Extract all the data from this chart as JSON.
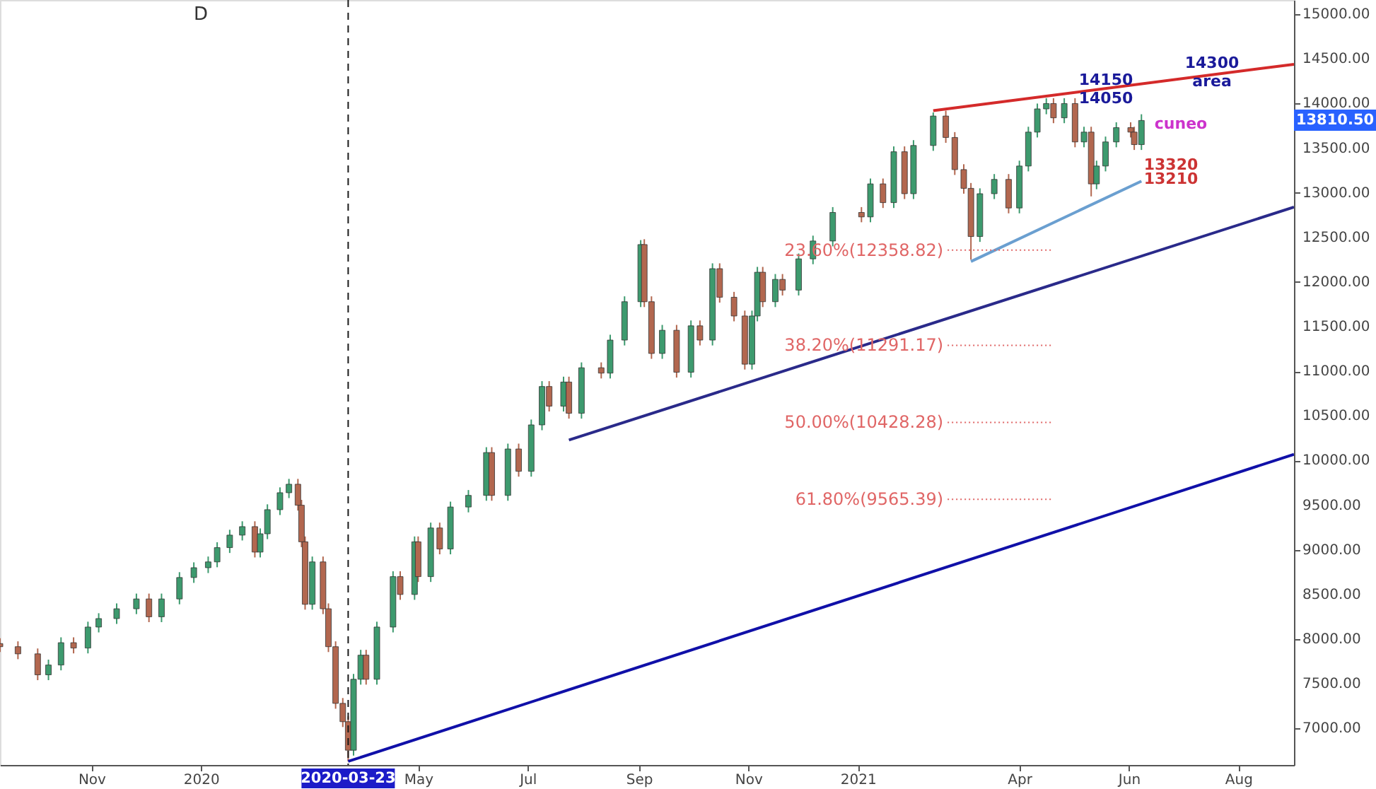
{
  "chart_data": {
    "type": "candlestick",
    "x": [
      "2019-09-11",
      "2019-09-21",
      "2019-10-02",
      "2019-10-08",
      "2019-10-15",
      "2019-10-22",
      "2019-10-30",
      "2019-11-05",
      "2019-11-15",
      "2019-11-26",
      "2019-12-03",
      "2019-12-10",
      "2019-12-20",
      "2019-12-28",
      "2020-01-05",
      "2020-01-10",
      "2020-01-17",
      "2020-01-24",
      "2020-01-31",
      "2020-02-03",
      "2020-02-07",
      "2020-02-14",
      "2020-02-19",
      "2020-02-24",
      "2020-02-26",
      "2020-02-28",
      "2020-03-03",
      "2020-03-09",
      "2020-03-12",
      "2020-03-16",
      "2020-03-20",
      "2020-03-23",
      "2020-03-26",
      "2020-03-30",
      "2020-04-02",
      "2020-04-08",
      "2020-04-17",
      "2020-04-21",
      "2020-04-29",
      "2020-05-01",
      "2020-05-08",
      "2020-05-13",
      "2020-05-19",
      "2020-05-29",
      "2020-06-08",
      "2020-06-11",
      "2020-06-20",
      "2020-06-26",
      "2020-07-03",
      "2020-07-09",
      "2020-07-13",
      "2020-07-21",
      "2020-07-24",
      "2020-07-31",
      "2020-08-11",
      "2020-08-16",
      "2020-08-24",
      "2020-09-02",
      "2020-09-04",
      "2020-09-08",
      "2020-09-14",
      "2020-09-22",
      "2020-09-30",
      "2020-10-05",
      "2020-10-12",
      "2020-10-16",
      "2020-10-24",
      "2020-10-30",
      "2020-11-03",
      "2020-11-06",
      "2020-11-09",
      "2020-11-16",
      "2020-11-20",
      "2020-11-29",
      "2020-12-07",
      "2020-12-18",
      "2021-01-03",
      "2021-01-08",
      "2021-01-15",
      "2021-01-21",
      "2021-01-27",
      "2021-02-01",
      "2021-02-12",
      "2021-02-19",
      "2021-02-24",
      "2021-03-01",
      "2021-03-05",
      "2021-03-10",
      "2021-03-18",
      "2021-03-26",
      "2021-04-01",
      "2021-04-06",
      "2021-04-11",
      "2021-04-16",
      "2021-04-20",
      "2021-04-26",
      "2021-05-02",
      "2021-05-07",
      "2021-05-11",
      "2021-05-14",
      "2021-05-19",
      "2021-05-25",
      "2021-06-02",
      "2021-06-04",
      "2021-06-08"
    ],
    "ohlc": [
      [
        7950,
        8010,
        7855,
        7915
      ],
      [
        7915,
        7975,
        7775,
        7835
      ],
      [
        7835,
        7895,
        7540,
        7600
      ],
      [
        7600,
        7770,
        7540,
        7710
      ],
      [
        7710,
        8020,
        7650,
        7960
      ],
      [
        7960,
        8020,
        7840,
        7900
      ],
      [
        7900,
        8195,
        7840,
        8135
      ],
      [
        8135,
        8290,
        8075,
        8230
      ],
      [
        8230,
        8400,
        8170,
        8340
      ],
      [
        8340,
        8510,
        8280,
        8450
      ],
      [
        8450,
        8510,
        8190,
        8250
      ],
      [
        8250,
        8510,
        8190,
        8450
      ],
      [
        8450,
        8750,
        8390,
        8690
      ],
      [
        8690,
        8860,
        8630,
        8800
      ],
      [
        8800,
        8925,
        8740,
        8865
      ],
      [
        8865,
        9085,
        8805,
        9025
      ],
      [
        9025,
        9225,
        8965,
        9165
      ],
      [
        9165,
        9320,
        9105,
        9260
      ],
      [
        9260,
        9320,
        8915,
        8975
      ],
      [
        8975,
        9240,
        8915,
        9180
      ],
      [
        9180,
        9510,
        9120,
        9450
      ],
      [
        9450,
        9700,
        9390,
        9640
      ],
      [
        9640,
        9795,
        9580,
        9735
      ],
      [
        9735,
        9795,
        9440,
        9500
      ],
      [
        9500,
        9560,
        9030,
        9090
      ],
      [
        9090,
        9150,
        8330,
        8390
      ],
      [
        8390,
        8925,
        8330,
        8865
      ],
      [
        8865,
        8925,
        8280,
        8340
      ],
      [
        8340,
        8400,
        7855,
        7915
      ],
      [
        7915,
        7975,
        7220,
        7280
      ],
      [
        7280,
        7340,
        7015,
        7075
      ],
      [
        7075,
        7135,
        6630,
        6755
      ],
      [
        6755,
        7610,
        6695,
        7550
      ],
      [
        7550,
        7880,
        7490,
        7820
      ],
      [
        7820,
        7880,
        7490,
        7550
      ],
      [
        7550,
        8195,
        7490,
        8135
      ],
      [
        8135,
        8760,
        8075,
        8700
      ],
      [
        8700,
        8760,
        8440,
        8500
      ],
      [
        8500,
        9150,
        8440,
        9090
      ],
      [
        9090,
        9150,
        8640,
        8700
      ],
      [
        8700,
        9305,
        8640,
        9245
      ],
      [
        9245,
        9305,
        8950,
        9010
      ],
      [
        9010,
        9540,
        8950,
        9480
      ],
      [
        9480,
        9670,
        9420,
        9610
      ],
      [
        9610,
        10150,
        9550,
        10090
      ],
      [
        10090,
        10150,
        9550,
        9610
      ],
      [
        9610,
        10190,
        9550,
        10130
      ],
      [
        10130,
        10190,
        9820,
        9880
      ],
      [
        9880,
        10460,
        9820,
        10400
      ],
      [
        10400,
        10890,
        10340,
        10830
      ],
      [
        10830,
        10890,
        10550,
        10610
      ],
      [
        10610,
        10940,
        10550,
        10880
      ],
      [
        10880,
        10940,
        10470,
        10530
      ],
      [
        10530,
        11100,
        10470,
        11040
      ],
      [
        11040,
        11100,
        10920,
        10980
      ],
      [
        10980,
        11410,
        10920,
        11350
      ],
      [
        11350,
        11840,
        11290,
        11780
      ],
      [
        11780,
        12470,
        11720,
        12420
      ],
      [
        12420,
        12480,
        11720,
        11780
      ],
      [
        11780,
        11840,
        11140,
        11200
      ],
      [
        11200,
        11520,
        11140,
        11460
      ],
      [
        11460,
        11520,
        10930,
        10990
      ],
      [
        10990,
        11570,
        10930,
        11510
      ],
      [
        11510,
        11570,
        11290,
        11350
      ],
      [
        11350,
        12210,
        11290,
        12150
      ],
      [
        12150,
        12210,
        11770,
        11830
      ],
      [
        11830,
        11890,
        11560,
        11620
      ],
      [
        11620,
        11680,
        11020,
        11080
      ],
      [
        11080,
        11680,
        11020,
        11620
      ],
      [
        11620,
        12170,
        11560,
        12110
      ],
      [
        12110,
        12170,
        11720,
        11780
      ],
      [
        11780,
        12090,
        11720,
        12030
      ],
      [
        12030,
        12090,
        11850,
        11910
      ],
      [
        11910,
        12320,
        11850,
        12260
      ],
      [
        12260,
        12520,
        12200,
        12460
      ],
      [
        12460,
        12840,
        12400,
        12780
      ],
      [
        12780,
        12840,
        12670,
        12730
      ],
      [
        12730,
        13160,
        12670,
        13100
      ],
      [
        13100,
        13160,
        12830,
        12890
      ],
      [
        12890,
        13520,
        12830,
        13460
      ],
      [
        13460,
        13520,
        12930,
        12990
      ],
      [
        12990,
        13590,
        12930,
        13530
      ],
      [
        13530,
        13900,
        13470,
        13860
      ],
      [
        13860,
        13920,
        13560,
        13620
      ],
      [
        13620,
        13680,
        13200,
        13260
      ],
      [
        13260,
        13320,
        12990,
        13050
      ],
      [
        13050,
        13110,
        12250,
        12510
      ],
      [
        12510,
        13050,
        12450,
        12990
      ],
      [
        12990,
        13210,
        12930,
        13150
      ],
      [
        13150,
        13210,
        12770,
        12830
      ],
      [
        12830,
        13360,
        12770,
        13300
      ],
      [
        13300,
        13740,
        13240,
        13680
      ],
      [
        13680,
        14000,
        13620,
        13940
      ],
      [
        13940,
        14060,
        13880,
        14000
      ],
      [
        14000,
        14060,
        13780,
        13840
      ],
      [
        13840,
        14060,
        13780,
        14000
      ],
      [
        14000,
        14060,
        13510,
        13570
      ],
      [
        13570,
        13740,
        13510,
        13680
      ],
      [
        13680,
        13740,
        12960,
        13100
      ],
      [
        13100,
        13360,
        13040,
        13300
      ],
      [
        13300,
        13630,
        13240,
        13570
      ],
      [
        13570,
        13790,
        13510,
        13730
      ],
      [
        13730,
        13790,
        13620,
        13680
      ],
      [
        13680,
        13740,
        13480,
        13540
      ],
      [
        13540,
        13880,
        13480,
        13810.5
      ]
    ],
    "series": [
      {
        "type": "line",
        "color": "#d42a2a",
        "x": [
          "2021-02-12",
          "2021-09-01"
        ],
        "values": [
          13920,
          14440
        ]
      },
      {
        "type": "line",
        "color": "#1010a8",
        "x": [
          "2020-03-23",
          "2021-09-01"
        ],
        "values": [
          6630,
          10070
        ]
      },
      {
        "type": "line",
        "color": "#2a2a8a",
        "x": [
          "2020-07-24",
          "2021-09-01"
        ],
        "values": [
          10230,
          12840
        ]
      },
      {
        "type": "line",
        "color": "#6a9fd0",
        "x": [
          "2021-03-05",
          "2021-06-08"
        ],
        "values": [
          12230,
          13130
        ]
      },
      {
        "type": "line",
        "name": "23.60%(12358.82)",
        "color": "#e06666",
        "line_style": "dotted",
        "x": [
          "2021-02-20",
          "2021-04-20"
        ],
        "values": [
          12358.82,
          12358.82
        ]
      },
      {
        "type": "line",
        "name": "38.20%(11291.17)",
        "color": "#e06666",
        "line_style": "dotted",
        "x": [
          "2021-02-20",
          "2021-04-20"
        ],
        "values": [
          11291.17,
          11291.17
        ]
      },
      {
        "type": "line",
        "name": "50.00%(10428.28)",
        "color": "#e06666",
        "line_style": "dotted",
        "x": [
          "2021-02-20",
          "2021-04-20"
        ],
        "values": [
          10428.28,
          10428.28
        ]
      },
      {
        "type": "line",
        "name": "61.80%(9565.39)",
        "color": "#e06666",
        "line_style": "dotted",
        "x": [
          "2021-02-20",
          "2021-04-20"
        ],
        "values": [
          9565.39,
          9565.39
        ]
      }
    ],
    "ref_lines": [
      {
        "axis": "x",
        "value": "2020-03-23",
        "label": "2020-03-23",
        "color": "#1a1a1a",
        "line_style": "dashed"
      }
    ],
    "annotations": [
      "D",
      "14150",
      "14050",
      "14300\narea",
      "cuneo",
      "13320",
      "13210",
      "13810.50"
    ],
    "xlim": [
      "2019-09-11",
      "2021-09-01"
    ],
    "xticks": [
      {
        "value": "2019-11-01",
        "label": "Nov"
      },
      {
        "value": "2020-01-01",
        "label": "2020"
      },
      {
        "value": "2020-05-01",
        "label": "May"
      },
      {
        "value": "2020-07-01",
        "label": "Jul"
      },
      {
        "value": "2020-09-01",
        "label": "Sep"
      },
      {
        "value": "2020-11-01",
        "label": "Nov"
      },
      {
        "value": "2021-01-01",
        "label": "2021"
      },
      {
        "value": "2021-04-01",
        "label": "Apr"
      },
      {
        "value": "2021-06-01",
        "label": "Jun"
      },
      {
        "value": "2021-08-01",
        "label": "Aug"
      }
    ],
    "ylim": [
      6590,
      15160
    ],
    "yticks": [
      {
        "value": 7000,
        "label": "7000.00"
      },
      {
        "value": 7500,
        "label": "7500.00"
      },
      {
        "value": 8000,
        "label": "8000.00"
      },
      {
        "value": 8500,
        "label": "8500.00"
      },
      {
        "value": 9000,
        "label": "9000.00"
      },
      {
        "value": 9500,
        "label": "9500.00"
      },
      {
        "value": 10000,
        "label": "10000.00"
      },
      {
        "value": 10500,
        "label": "10500.00"
      },
      {
        "value": 11000,
        "label": "11000.00"
      },
      {
        "value": 11500,
        "label": "11500.00"
      },
      {
        "value": 12000,
        "label": "12000.00"
      },
      {
        "value": 12500,
        "label": "12500.00"
      },
      {
        "value": 13000,
        "label": "13000.00"
      },
      {
        "value": 13500,
        "label": "13500.00"
      },
      {
        "value": 14000,
        "label": "14000.00"
      },
      {
        "value": 14500,
        "label": "14500.00"
      },
      {
        "value": 15000,
        "label": "15000.00"
      }
    ],
    "grid": false
  }
}
